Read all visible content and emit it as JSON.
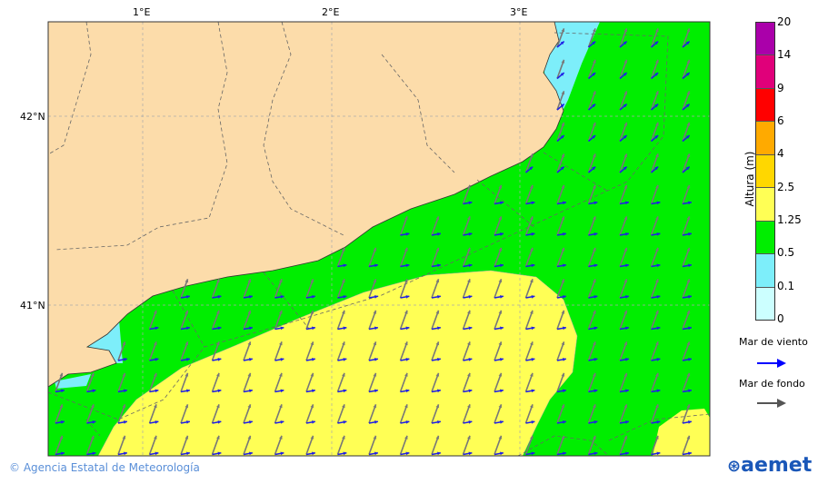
{
  "map": {
    "lon_labels": [
      "1°E",
      "2°E",
      "3°E"
    ],
    "lat_labels": [
      "42°N",
      "41°N"
    ]
  },
  "colorbar": {
    "title": "Altura (m)",
    "ticks": [
      "20",
      "14",
      "9",
      "6",
      "4",
      "2.5",
      "1.25",
      "0.5",
      "0.1",
      "0"
    ],
    "colors": [
      "#aa00aa",
      "#e0007a",
      "#ff0000",
      "#ffaa00",
      "#ffd700",
      "#ffff55",
      "#00ee00",
      "#7deefa",
      "#ccffff"
    ]
  },
  "legend": {
    "wind_sea": "Mar de viento",
    "wind_sea_color": "#0000ff",
    "swell": "Mar de fondo",
    "swell_color": "#555555"
  },
  "credit": "© Agencia Estatal de Meteorología",
  "logo": "aemet"
}
